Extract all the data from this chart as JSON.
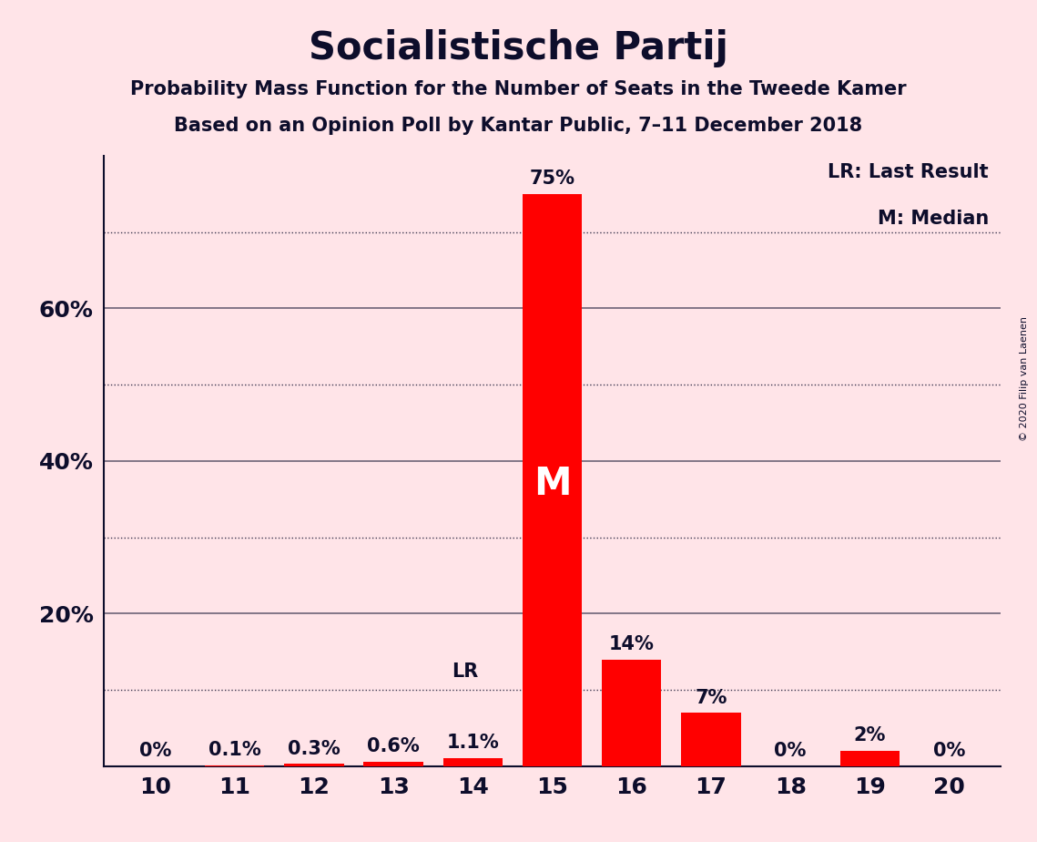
{
  "title": "Socialistische Partij",
  "subtitle1": "Probability Mass Function for the Number of Seats in the Tweede Kamer",
  "subtitle2": "Based on an Opinion Poll by Kantar Public, 7–11 December 2018",
  "copyright": "© 2020 Filip van Laenen",
  "seats": [
    10,
    11,
    12,
    13,
    14,
    15,
    16,
    17,
    18,
    19,
    20
  ],
  "probabilities": [
    0.0,
    0.1,
    0.3,
    0.6,
    1.1,
    75.0,
    14.0,
    7.0,
    0.0,
    2.0,
    0.0
  ],
  "bar_labels": [
    "0%",
    "0.1%",
    "0.3%",
    "0.6%",
    "1.1%",
    "75%",
    "14%",
    "7%",
    "0%",
    "2%",
    "0%"
  ],
  "bar_color": "#FF0000",
  "background_color": "#FFE4E8",
  "text_color": "#0D0D2B",
  "last_result_seat": 14,
  "median_seat": 15,
  "ylim": [
    0,
    80
  ],
  "grid_dotted": [
    10,
    30,
    50,
    70
  ],
  "grid_solid": [
    20,
    40,
    60
  ],
  "legend_lr": "LR: Last Result",
  "legend_m": "M: Median",
  "title_fontsize": 30,
  "subtitle_fontsize": 15,
  "tick_fontsize": 18,
  "label_fontsize": 15,
  "legend_fontsize": 15,
  "bar_width": 0.75
}
